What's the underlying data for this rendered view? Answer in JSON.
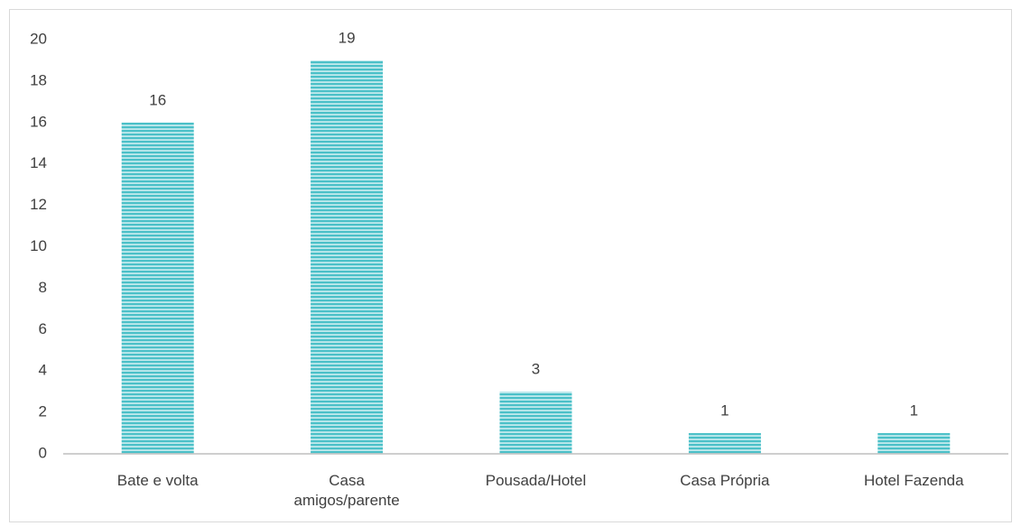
{
  "chart_data": {
    "type": "bar",
    "categories": [
      "Bate e volta",
      "Casa amigos/parente",
      "Pousada/Hotel",
      "Casa Própria",
      "Hotel Fazenda"
    ],
    "values": [
      16,
      19,
      3,
      1,
      1
    ],
    "color": "#4bc0c8",
    "ylim": [
      0,
      20
    ],
    "yticks": [
      0,
      2,
      4,
      6,
      8,
      10,
      12,
      14,
      16,
      18,
      20
    ],
    "grid": false
  }
}
